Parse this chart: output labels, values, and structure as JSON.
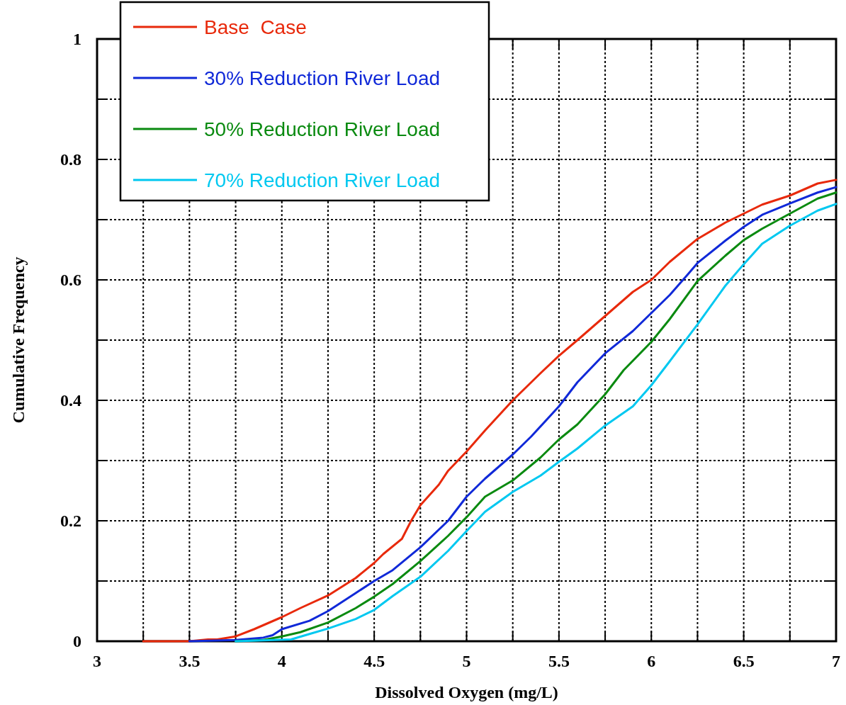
{
  "chart_data": {
    "type": "line",
    "xlabel": "Dissolved Oxygen (mg/L)",
    "ylabel": "Cumulative Frequency",
    "xlim": [
      3,
      7
    ],
    "ylim": [
      0,
      1
    ],
    "xticks": [
      3,
      {
        "value": 3.25,
        "label": null
      },
      3.5,
      {
        "value": 3.75,
        "label": null
      },
      4,
      {
        "value": 4.25,
        "label": null
      },
      4.5,
      {
        "value": 4.75,
        "label": null
      },
      5,
      {
        "value": 5.25,
        "label": null
      },
      5.5,
      {
        "value": 5.75,
        "label": null
      },
      6,
      {
        "value": 6.25,
        "label": null
      },
      6.5,
      {
        "value": 6.75,
        "label": null
      },
      7
    ],
    "yticks": [
      0,
      {
        "value": 0.1,
        "label": null
      },
      0.2,
      {
        "value": 0.3,
        "label": null
      },
      0.4,
      {
        "value": 0.5,
        "label": null
      },
      0.6,
      {
        "value": 0.7,
        "label": null
      },
      0.8,
      {
        "value": 0.9,
        "label": null
      },
      1
    ],
    "grid": true,
    "legend": "top left",
    "line_style": "solid",
    "marker": "none",
    "series": [
      {
        "name": "Base  Case",
        "color": "#e8290b",
        "x": [
          3.25,
          3.5,
          3.6,
          3.65,
          3.75,
          3.85,
          4,
          4.1,
          4.25,
          4.4,
          4.5,
          4.55,
          4.65,
          4.7,
          4.75,
          4.85,
          4.9,
          5,
          5.1,
          5.25,
          5.4,
          5.5,
          5.6,
          5.75,
          5.9,
          6,
          6.1,
          6.25,
          6.4,
          6.5,
          6.6,
          6.75,
          6.9,
          7
        ],
        "values": [
          0,
          0,
          0.003,
          0.003,
          0.008,
          0.02,
          0.04,
          0.055,
          0.076,
          0.105,
          0.13,
          0.145,
          0.17,
          0.2,
          0.226,
          0.26,
          0.283,
          0.315,
          0.35,
          0.4,
          0.445,
          0.474,
          0.5,
          0.54,
          0.58,
          0.6,
          0.63,
          0.668,
          0.695,
          0.71,
          0.725,
          0.74,
          0.76,
          0.766
        ]
      },
      {
        "name": "30% Reduction River Load",
        "color": "#1029d8",
        "x": [
          3.5,
          3.75,
          3.9,
          3.95,
          4,
          4.15,
          4.25,
          4.4,
          4.5,
          4.6,
          4.75,
          4.9,
          5,
          5.1,
          5.25,
          5.35,
          5.5,
          5.6,
          5.75,
          5.9,
          6,
          6.1,
          6.2,
          6.25,
          6.4,
          6.5,
          6.6,
          6.75,
          6.9,
          7
        ],
        "values": [
          0,
          0.002,
          0.006,
          0.01,
          0.02,
          0.034,
          0.05,
          0.08,
          0.1,
          0.118,
          0.156,
          0.2,
          0.24,
          0.27,
          0.31,
          0.34,
          0.39,
          0.43,
          0.478,
          0.515,
          0.545,
          0.575,
          0.61,
          0.628,
          0.665,
          0.688,
          0.708,
          0.727,
          0.745,
          0.754
        ]
      },
      {
        "name": "50% Reduction River Load",
        "color": "#0a8a10",
        "x": [
          3.75,
          3.9,
          4,
          4.1,
          4.25,
          4.4,
          4.5,
          4.6,
          4.75,
          4.9,
          5,
          5.1,
          5.25,
          5.4,
          5.5,
          5.6,
          5.75,
          5.85,
          6,
          6.1,
          6.25,
          6.4,
          6.5,
          6.6,
          6.75,
          6.9,
          7
        ],
        "values": [
          0,
          0.002,
          0.008,
          0.015,
          0.031,
          0.055,
          0.074,
          0.095,
          0.133,
          0.175,
          0.206,
          0.24,
          0.267,
          0.305,
          0.335,
          0.36,
          0.41,
          0.45,
          0.497,
          0.535,
          0.598,
          0.64,
          0.666,
          0.685,
          0.71,
          0.735,
          0.745
        ]
      },
      {
        "name": "70% Reduction River Load",
        "color": "#00c8f0",
        "x": [
          3.75,
          4.05,
          4.15,
          4.25,
          4.4,
          4.5,
          4.6,
          4.75,
          4.9,
          5,
          5.1,
          5.25,
          5.4,
          5.5,
          5.6,
          5.75,
          5.9,
          6,
          6.1,
          6.25,
          6.4,
          6.5,
          6.6,
          6.75,
          6.9,
          7
        ],
        "values": [
          0,
          0.003,
          0.012,
          0.021,
          0.037,
          0.052,
          0.075,
          0.107,
          0.15,
          0.183,
          0.215,
          0.248,
          0.275,
          0.298,
          0.32,
          0.358,
          0.39,
          0.425,
          0.465,
          0.526,
          0.59,
          0.626,
          0.66,
          0.69,
          0.715,
          0.726
        ]
      }
    ]
  }
}
